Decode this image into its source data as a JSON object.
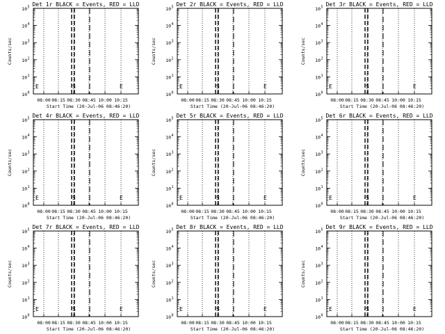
{
  "figure": {
    "xlabel": "Start Time (20-Jul-06 08:46:20)",
    "ylabel": "Counts/sec",
    "x_tick_labels": [
      "08:00",
      "08:15",
      "08:30",
      "08:45",
      "10:00",
      "10:15"
    ],
    "y_tick_base": "10",
    "y_tick_exponents": [
      "0",
      "1",
      "2",
      "3",
      "4",
      "5"
    ]
  },
  "chart_data": [
    {
      "type": "line",
      "title": "Det 1r BLACK = Events, RED = LLD",
      "series": []
    },
    {
      "type": "line",
      "title": "Det 2r BLACK = Events, RED = LLD",
      "series": []
    },
    {
      "type": "line",
      "title": "Det 3r BLACK = Events, RED = LLD",
      "series": []
    },
    {
      "type": "line",
      "title": "Det 4r BLACK = Events, RED = LLD",
      "series": []
    },
    {
      "type": "line",
      "title": "Det 5r BLACK = Events, RED = LLD",
      "series": []
    },
    {
      "type": "line",
      "title": "Det 6r BLACK = Events, RED = LLD",
      "series": []
    },
    {
      "type": "line",
      "title": "Det 7r BLACK = Events, RED = LLD",
      "series": []
    },
    {
      "type": "line",
      "title": "Det 8r BLACK = Events, RED = LLD",
      "series": []
    },
    {
      "type": "line",
      "title": "Det 9r BLACK = Events, RED = LLD",
      "series": []
    }
  ],
  "annotations": {
    "marker_left": "E",
    "marker_mid": "S",
    "marker_right": "E"
  },
  "colors": {
    "background": "#ffffff",
    "foreground": "#000000"
  }
}
